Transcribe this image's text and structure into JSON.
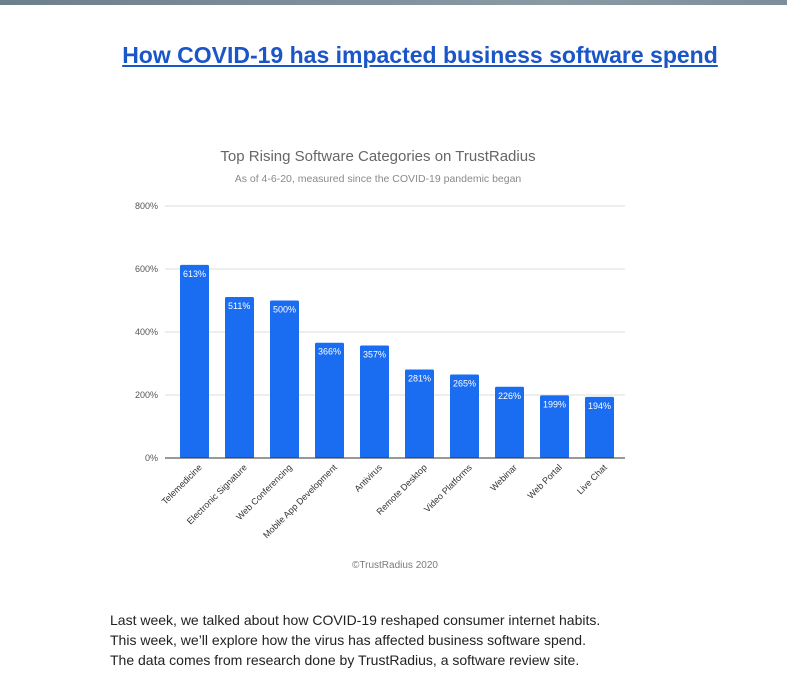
{
  "article": {
    "headline": "How COVID-19 has impacted business software spend",
    "paragraph_lines": [
      "Last week, we talked about how COVID-19 reshaped consumer internet habits.",
      "This week, we’ll explore how the virus has affected business software spend.",
      "The data comes from research done by TrustRadius, a software review site."
    ]
  },
  "colors": {
    "link": "#1a56c8",
    "bar": "#1a6cf0",
    "grid": "#dddddd"
  },
  "chart_data": {
    "type": "bar",
    "title": "Top Rising Software Categories on TrustRadius",
    "subtitle": "As of 4-6-20, measured since the COVID-19 pandemic began",
    "source": "©TrustRadius 2020",
    "categories": [
      "Telemedicine",
      "Electronic Signature",
      "Web Conferencing",
      "Mobile App Development",
      "Antivirus",
      "Remote Desktop",
      "Video Platforms",
      "Webinar",
      "Web Portal",
      "Live Chat"
    ],
    "values": [
      613,
      511,
      500,
      366,
      357,
      281,
      265,
      226,
      199,
      194
    ],
    "value_labels": [
      "613%",
      "511%",
      "500%",
      "366%",
      "357%",
      "281%",
      "265%",
      "226%",
      "199%",
      "194%"
    ],
    "yticks": [
      "0%",
      "200%",
      "400%",
      "600%",
      "800%"
    ],
    "ytick_values": [
      0,
      200,
      400,
      600,
      800
    ],
    "ylim": [
      0,
      800
    ],
    "grid": true,
    "xlabel": "",
    "ylabel": ""
  }
}
